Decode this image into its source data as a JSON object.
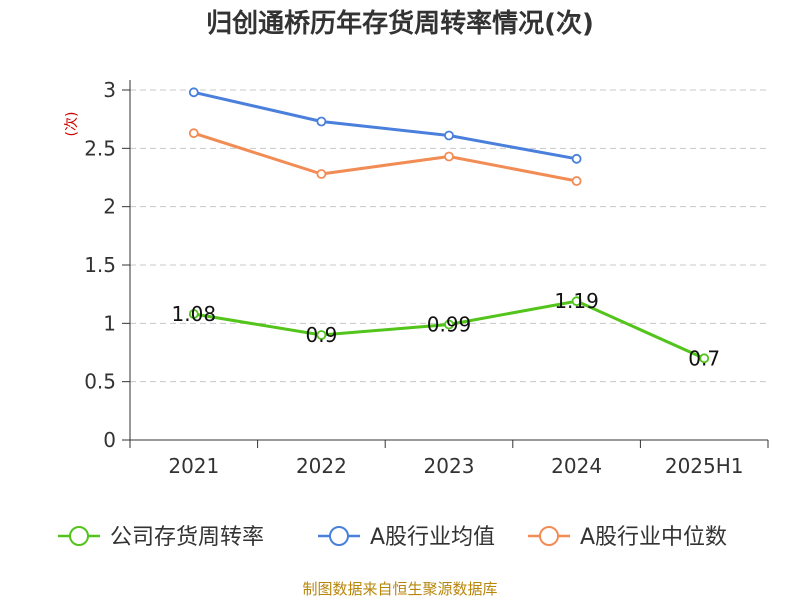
{
  "chart_data": {
    "type": "line",
    "title": "归创通桥历年存货周转率情况(次)",
    "ylabel": "(次)",
    "xlabel": "",
    "categories": [
      "2021",
      "2022",
      "2023",
      "2024",
      "2025H1"
    ],
    "ylim": [
      0,
      3
    ],
    "yticks": [
      "0",
      "0.5",
      "1",
      "1.5",
      "2",
      "2.5",
      "3"
    ],
    "ytick_values": [
      0,
      0.5,
      1,
      1.5,
      2,
      2.5,
      3
    ],
    "grid": true,
    "legend_position": "bottom",
    "series": [
      {
        "name": "公司存货周转率",
        "color": "#52c41a",
        "values": [
          1.08,
          0.9,
          0.99,
          1.19,
          0.7
        ],
        "labels": [
          "1.08",
          "0.9",
          "0.99",
          "1.19",
          "0.7"
        ]
      },
      {
        "name": "A股行业均值",
        "color": "#4a7fdb",
        "values": [
          2.98,
          2.73,
          2.61,
          2.41,
          null
        ]
      },
      {
        "name": "A股行业中位数",
        "color": "#f28c55",
        "values": [
          2.63,
          2.28,
          2.43,
          2.22,
          null
        ]
      }
    ]
  },
  "source": "制图数据来自恒生聚源数据库"
}
